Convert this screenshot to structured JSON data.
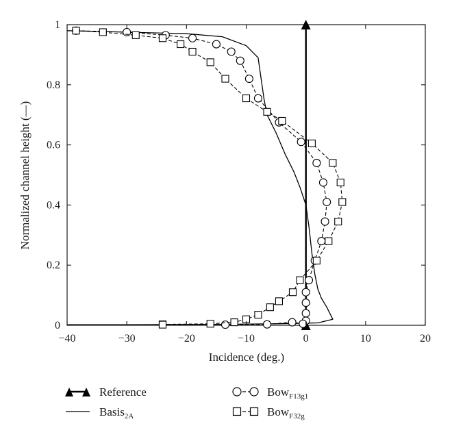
{
  "chart_data": {
    "type": "line",
    "xlabel": "Incidence (deg.)",
    "ylabel": "Normalized channel height (—)",
    "xlim": [
      -40,
      20
    ],
    "ylim": [
      0,
      1
    ],
    "xticks": [
      "−40",
      "−30",
      "−20",
      "−10",
      "0",
      "10",
      "20"
    ],
    "yticks": [
      "0",
      "0.2",
      "0.4",
      "0.6",
      "0.8",
      "1"
    ],
    "grid": false,
    "legend_position": "bottom",
    "series": [
      {
        "name": "Reference",
        "marker": "triangle",
        "line": "solid-bold",
        "color": "#000000",
        "x": [
          0,
          0
        ],
        "y": [
          0,
          1
        ]
      },
      {
        "name": "Basis",
        "name_subscript": "2A",
        "marker": "none",
        "line": "solid",
        "color": "#000000",
        "x": [
          -40,
          -30,
          -20,
          -14,
          -10,
          -8,
          -7.5,
          -7,
          -6.5,
          -5,
          -3.5,
          -2,
          -1,
          0,
          0.5,
          1,
          1.5,
          2,
          2.6,
          3.5,
          4.5,
          2,
          -5,
          -15,
          -30,
          -40
        ],
        "y": [
          0.98,
          0.975,
          0.97,
          0.96,
          0.93,
          0.89,
          0.82,
          0.75,
          0.7,
          0.64,
          0.57,
          0.51,
          0.46,
          0.4,
          0.33,
          0.24,
          0.17,
          0.12,
          0.09,
          0.06,
          0.02,
          0.008,
          0.005,
          0.003,
          0.002,
          0.002
        ]
      },
      {
        "name": "Bow",
        "name_subscript": "F13g1",
        "marker": "circle",
        "line": "dashed",
        "color": "#000000",
        "x": [
          -38.5,
          -30,
          -23.5,
          -19,
          -15,
          -12.5,
          -11,
          -9.5,
          -8,
          -4.5,
          -0.8,
          1.8,
          2.9,
          3.5,
          3.2,
          2.6,
          1.5,
          0.5,
          0,
          0,
          0,
          0,
          -0.5,
          -2.3,
          -6.5,
          -13.5
        ],
        "y": [
          0.98,
          0.975,
          0.965,
          0.955,
          0.935,
          0.91,
          0.88,
          0.82,
          0.755,
          0.675,
          0.61,
          0.54,
          0.475,
          0.41,
          0.345,
          0.28,
          0.215,
          0.15,
          0.11,
          0.075,
          0.04,
          0.015,
          0.005,
          0.01,
          0.003,
          0.002
        ]
      },
      {
        "name": "Bow",
        "name_subscript": "F32g",
        "marker": "square",
        "line": "dashed",
        "color": "#000000",
        "x": [
          -38.5,
          -34,
          -28.5,
          -24,
          -21,
          -19,
          -16,
          -13.5,
          -10,
          -6.5,
          -4,
          1,
          4.5,
          5.8,
          6.1,
          5.4,
          3.8,
          1.8,
          -1,
          -2.2,
          -4.5,
          -6,
          -8,
          -10,
          -12,
          -16,
          -24,
          -24
        ],
        "y": [
          0.98,
          0.975,
          0.965,
          0.955,
          0.935,
          0.91,
          0.875,
          0.82,
          0.755,
          0.71,
          0.68,
          0.605,
          0.54,
          0.475,
          0.41,
          0.345,
          0.28,
          0.215,
          0.15,
          0.11,
          0.08,
          0.06,
          0.035,
          0.02,
          0.01,
          0.005,
          0.003,
          0.002
        ]
      }
    ]
  }
}
